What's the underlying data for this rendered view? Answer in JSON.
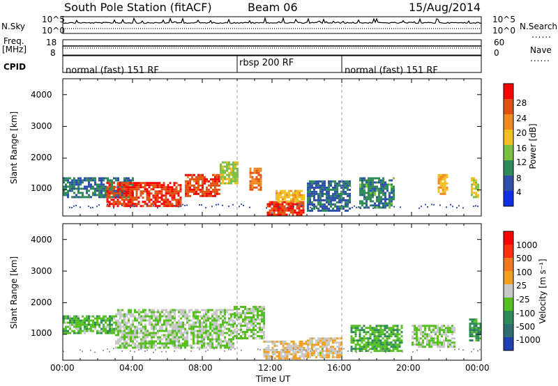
{
  "header": {
    "station": "South Pole Station (fitACF)",
    "beam": "Beam 06",
    "date": "15/Aug/2014"
  },
  "aux": {
    "nsky_label": "N.Sky",
    "nsearch_label": "N.Search",
    "freq_label_1": "Freq.",
    "freq_label_2": "[MHz]",
    "nave_label": "Nave",
    "cpid_label": "CPID",
    "noise_ticks": [
      "10^5",
      "10^0"
    ],
    "freq_ticks": [
      "18",
      "8"
    ],
    "nave_ticks": [
      "60",
      "0"
    ],
    "cpid_segments": [
      {
        "label": "normal (fast) 151 RF",
        "start_hr": 0,
        "end_hr": 10
      },
      {
        "label": "rbsp 200 RF",
        "start_hr": 10,
        "end_hr": 16
      },
      {
        "label": "normal (fast) 151 RF",
        "start_hr": 16,
        "end_hr": 24
      }
    ],
    "dotted_key": "......"
  },
  "axes": {
    "xlabel": "Time UT",
    "xticks": [
      "00:00",
      "04:00",
      "08:00",
      "12:00",
      "16:00",
      "20:00",
      "00:00"
    ],
    "ylabel": "Slant Range [km]",
    "yticks": [
      "1000",
      "2000",
      "3000",
      "4000"
    ]
  },
  "colorbars": {
    "power": {
      "label": "Power [dB]",
      "ticks": [
        "4",
        "8",
        "12",
        "16",
        "20",
        "24",
        "28"
      ],
      "colors": [
        "#1030e8",
        "#2f4faa",
        "#2e8b57",
        "#7ac142",
        "#f0c020",
        "#f08a20",
        "#e05010",
        "#ff0000"
      ]
    },
    "velocity": {
      "label": "Velocity [m s⁻¹]",
      "ticks": [
        "1000",
        "500",
        "100",
        "25",
        "-25",
        "-100",
        "-500",
        "-1000"
      ],
      "colors": [
        "#2040b0",
        "#2e6e6e",
        "#2e8b57",
        "#55c020",
        "#c8c8c8",
        "#f0a020",
        "#f07820",
        "#ff3010",
        "#ff0000"
      ]
    }
  },
  "chart_data": {
    "type": "heatmap",
    "title": "South Pole Station (fitACF) Beam 06 15/Aug/2014",
    "xlabel": "Time UT",
    "ylabel": "Slant Range [km]",
    "xlim_hours": [
      0,
      24
    ],
    "ylim_km": [
      180,
      4500
    ],
    "panels": [
      {
        "name": "Power",
        "units": "dB",
        "clim": [
          0,
          30
        ],
        "regions": [
          {
            "t": [
              0.0,
              4.0
            ],
            "r": [
              800,
              1400
            ],
            "v": 8
          },
          {
            "t": [
              2.5,
              6.8
            ],
            "r": [
              500,
              1250
            ],
            "v": 26
          },
          {
            "t": [
              7.0,
              9.0
            ],
            "r": [
              800,
              1500
            ],
            "v": 25
          },
          {
            "t": [
              9.0,
              10.0
            ],
            "r": [
              1200,
              1900
            ],
            "v": 14
          },
          {
            "t": [
              10.7,
              11.3
            ],
            "r": [
              1000,
              1700
            ],
            "v": 22
          },
          {
            "t": [
              11.7,
              13.8
            ],
            "r": [
              250,
              650
            ],
            "v": 26
          },
          {
            "t": [
              12.2,
              13.8
            ],
            "r": [
              650,
              1000
            ],
            "v": 18
          },
          {
            "t": [
              14.0,
              16.5
            ],
            "r": [
              350,
              1300
            ],
            "v": 7
          },
          {
            "t": [
              17.0,
              19.0
            ],
            "r": [
              450,
              1400
            ],
            "v": 9
          },
          {
            "t": [
              21.5,
              22.0
            ],
            "r": [
              900,
              1500
            ],
            "v": 18
          },
          {
            "t": [
              23.4,
              23.8
            ],
            "r": [
              800,
              1400
            ],
            "v": 16
          }
        ]
      },
      {
        "name": "Velocity",
        "units": "m s-1",
        "clim": [
          -1000,
          1000
        ],
        "regions": [
          {
            "t": [
              0.0,
              3.0
            ],
            "r": [
              1050,
              1600
            ],
            "v": -250
          },
          {
            "t": [
              3.0,
              9.8
            ],
            "r": [
              600,
              1800
            ],
            "v": -90
          },
          {
            "t": [
              9.8,
              11.5
            ],
            "r": [
              900,
              1900
            ],
            "v": -150
          },
          {
            "t": [
              11.5,
              14.0
            ],
            "r": [
              220,
              800
            ],
            "v": 90
          },
          {
            "t": [
              14.0,
              16.0
            ],
            "r": [
              250,
              900
            ],
            "v": 60
          },
          {
            "t": [
              16.5,
              19.5
            ],
            "r": [
              500,
              1300
            ],
            "v": -300
          },
          {
            "t": [
              20.0,
              22.5
            ],
            "r": [
              600,
              1300
            ],
            "v": -120
          },
          {
            "t": [
              23.3,
              24.0
            ],
            "r": [
              800,
              1500
            ],
            "v": -400
          }
        ]
      }
    ],
    "noise_sky_range": [
      1,
      100000
    ],
    "freq_mhz_range": [
      8,
      18
    ],
    "nave_range": [
      0,
      60
    ],
    "mode_boundaries_hr": [
      10,
      16
    ]
  }
}
